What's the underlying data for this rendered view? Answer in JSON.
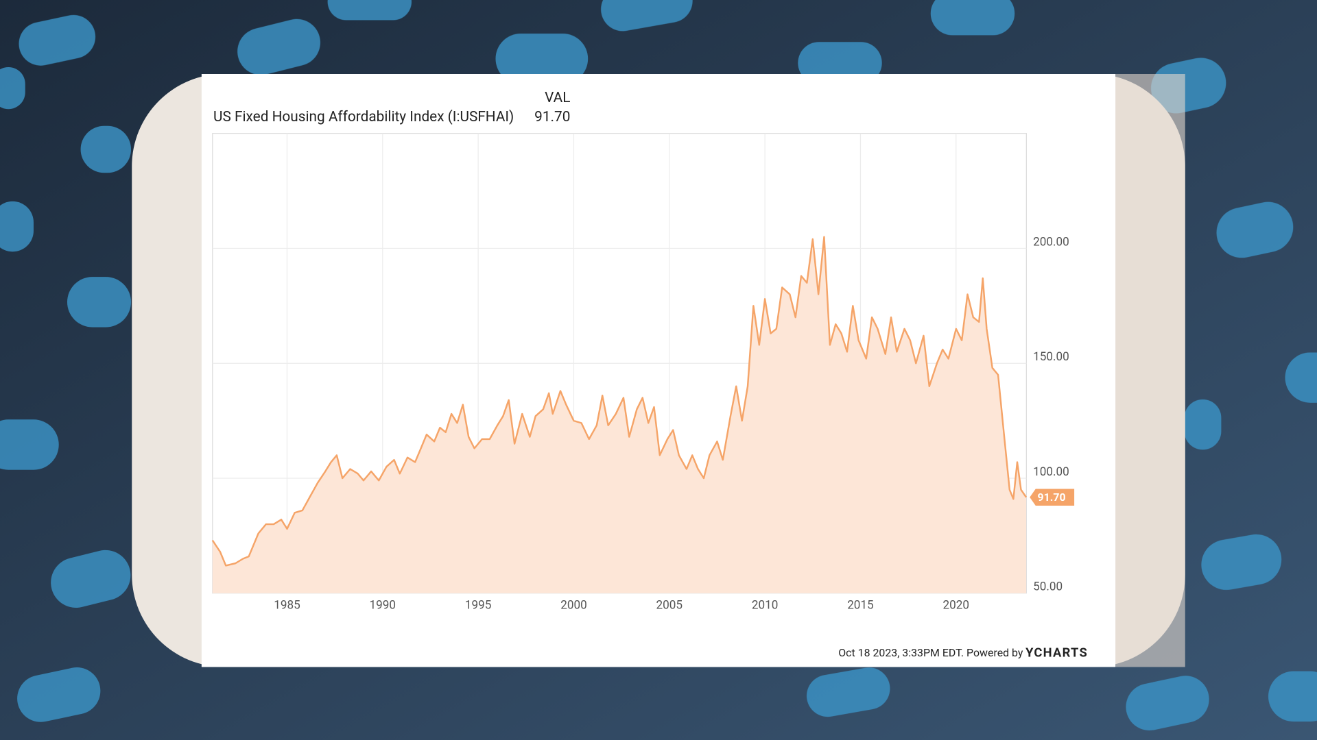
{
  "header": {
    "column": "VAL",
    "name": "US Fixed Housing Affordability Index (I:USFHAI)",
    "value": "91.70"
  },
  "footer": {
    "timestamp": "Oct 18 2023, 3:33PM EDT. Powered by",
    "brand": "YCHARTS"
  },
  "chart_data": {
    "type": "area",
    "series": [
      {
        "name": "US Fixed Housing Affordability Index (I:USFHAI)",
        "color": "#f5a468",
        "fill": "#fde6d7",
        "x": [
          1981.1,
          1981.5,
          1981.8,
          1982.3,
          1982.7,
          1983.0,
          1983.5,
          1983.9,
          1984.3,
          1984.7,
          1985.0,
          1985.4,
          1985.8,
          1986.2,
          1986.6,
          1987.0,
          1987.3,
          1987.6,
          1987.9,
          1988.3,
          1988.7,
          1989.0,
          1989.4,
          1989.8,
          1990.2,
          1990.6,
          1990.9,
          1991.3,
          1991.7,
          1992.0,
          1992.3,
          1992.7,
          1993.0,
          1993.3,
          1993.6,
          1993.9,
          1994.2,
          1994.5,
          1994.8,
          1995.2,
          1995.6,
          1996.0,
          1996.3,
          1996.6,
          1996.9,
          1997.3,
          1997.7,
          1998.0,
          1998.4,
          1998.7,
          1998.9,
          1999.3,
          1999.6,
          2000.0,
          2000.4,
          2000.8,
          2001.2,
          2001.5,
          2001.8,
          2002.2,
          2002.6,
          2002.9,
          2003.3,
          2003.6,
          2003.9,
          2004.2,
          2004.5,
          2004.9,
          2005.2,
          2005.5,
          2005.9,
          2006.2,
          2006.5,
          2006.8,
          2007.1,
          2007.5,
          2007.8,
          2008.2,
          2008.5,
          2008.8,
          2009.1,
          2009.4,
          2009.7,
          2010.0,
          2010.3,
          2010.6,
          2010.9,
          2011.3,
          2011.6,
          2011.9,
          2012.2,
          2012.5,
          2012.8,
          2013.1,
          2013.4,
          2013.7,
          2014.0,
          2014.3,
          2014.6,
          2014.9,
          2015.3,
          2015.6,
          2015.9,
          2016.3,
          2016.6,
          2016.9,
          2017.3,
          2017.6,
          2017.9,
          2018.3,
          2018.6,
          2019.0,
          2019.3,
          2019.6,
          2020.0,
          2020.3,
          2020.6,
          2020.9,
          2021.2,
          2021.4,
          2021.6,
          2021.9,
          2022.2,
          2022.5,
          2022.8,
          2023.0,
          2023.2,
          2023.4,
          2023.67
        ],
        "values": [
          73,
          68,
          62,
          63,
          65,
          66,
          76,
          80,
          80,
          82,
          78,
          85,
          86,
          92,
          98,
          103,
          107,
          110,
          100,
          104,
          102,
          99,
          103,
          99,
          105,
          108,
          102,
          109,
          107,
          113,
          119,
          116,
          122,
          120,
          128,
          124,
          132,
          118,
          113,
          117,
          117,
          123,
          127,
          134,
          115,
          128,
          118,
          127,
          130,
          137,
          128,
          138,
          132,
          125,
          124,
          117,
          123,
          136,
          123,
          128,
          135,
          118,
          130,
          135,
          124,
          131,
          110,
          117,
          121,
          110,
          104,
          110,
          104,
          100,
          110,
          116,
          108,
          127,
          140,
          125,
          140,
          175,
          158,
          178,
          163,
          165,
          183,
          180,
          170,
          188,
          185,
          204,
          180,
          205,
          158,
          167,
          163,
          155,
          175,
          160,
          152,
          170,
          165,
          154,
          170,
          155,
          165,
          160,
          150,
          162,
          140,
          150,
          156,
          152,
          165,
          160,
          180,
          170,
          168,
          187,
          165,
          148,
          145,
          120,
          95,
          91,
          107,
          95,
          91.7
        ]
      }
    ],
    "last_label": "91.70",
    "xlim": [
      1981.1,
      2023.68
    ],
    "xticks": [
      1985,
      1990,
      1995,
      2000,
      2005,
      2010,
      2015,
      2020
    ],
    "ylim": [
      50,
      250
    ],
    "yticks": [
      {
        "value": 50,
        "label": "50.00"
      },
      {
        "value": 100,
        "label": "100.00"
      },
      {
        "value": 150,
        "label": "150.00"
      },
      {
        "value": 200,
        "label": "200.00"
      }
    ],
    "grid": true
  }
}
